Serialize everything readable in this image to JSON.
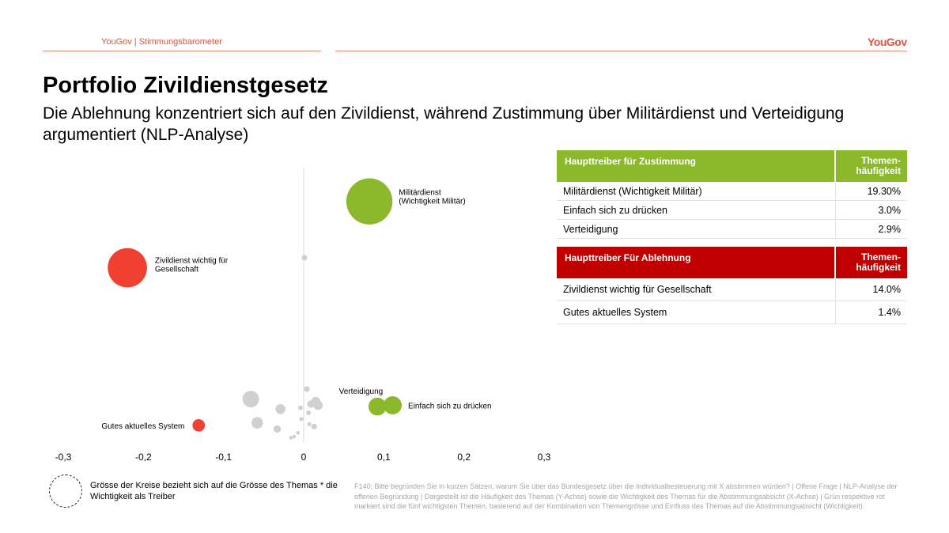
{
  "header": {
    "left_text": "YouGov | Stimmungsbarometer",
    "logo": "YouGov",
    "accent_color": "#e0533f"
  },
  "title": "Portfolio Zivildienstgesetz",
  "subtitle": "Die Ablehnung konzentriert sich auf den Zivildienst, während Zustimmung über Militärdienst und Verteidigung argumentiert (NLP-Analyse)",
  "chart_data": {
    "type": "scatter",
    "title": "",
    "xlabel": "",
    "ylabel": "",
    "xlim": [
      -0.3,
      0.3
    ],
    "x_tick_labels": [
      "-0,3",
      "-0,2",
      "-0,1",
      "0",
      "0,1",
      "0,2",
      "0,3"
    ],
    "x_ticks": [
      -0.3,
      -0.2,
      -0.1,
      0,
      0.1,
      0.2,
      0.3
    ],
    "grid": false,
    "colors": {
      "green": "#8cb92b",
      "red": "#f04030",
      "grey": "#d0d0d0"
    },
    "highlighted": [
      {
        "label": "Militärdienst\n(Wichtigkeit Militär)",
        "x": 0.082,
        "y": 19.3,
        "size": 19.3,
        "color": "green"
      },
      {
        "label": "Zivildienst wichtig für\nGesellschaft",
        "x": -0.22,
        "y": 14.0,
        "size": 14.0,
        "color": "red"
      },
      {
        "label": "Verteidigung",
        "x": 0.092,
        "y": 2.9,
        "size": 2.9,
        "color": "green"
      },
      {
        "label": "Einfach sich zu drücken",
        "x": 0.111,
        "y": 3.0,
        "size": 3.0,
        "color": "green"
      },
      {
        "label": "Gutes aktuelles System",
        "x": -0.131,
        "y": 1.4,
        "size": 1.4,
        "color": "red"
      }
    ],
    "other_points": [
      {
        "x": 0.001,
        "y": 14.8,
        "size": 0.3
      },
      {
        "x": 0.004,
        "y": 4.3,
        "size": 0.3
      },
      {
        "x": -0.066,
        "y": 3.5,
        "size": 2.5
      },
      {
        "x": -0.058,
        "y": 1.6,
        "size": 1.2
      },
      {
        "x": -0.029,
        "y": 2.7,
        "size": 0.9
      },
      {
        "x": -0.033,
        "y": 1.1,
        "size": 0.5
      },
      {
        "x": 0.015,
        "y": 3.3,
        "size": 0.8
      },
      {
        "x": 0.018,
        "y": 3.0,
        "size": 0.8
      },
      {
        "x": 0.009,
        "y": 3.1,
        "size": 0.5
      },
      {
        "x": 0.013,
        "y": 1.3,
        "size": 0.3
      },
      {
        "x": 0.006,
        "y": 2.4,
        "size": 0.2
      },
      {
        "x": -0.004,
        "y": 2.8,
        "size": 0.2
      },
      {
        "x": -0.003,
        "y": 1.9,
        "size": 0.15
      },
      {
        "x": 0.007,
        "y": 1.5,
        "size": 0.15
      },
      {
        "x": -0.012,
        "y": 0.5,
        "size": 0.12
      },
      {
        "x": -0.016,
        "y": 0.4,
        "size": 0.12
      },
      {
        "x": -0.007,
        "y": 0.8,
        "size": 0.12
      }
    ]
  },
  "table_agree": {
    "header_label": "Haupttreiber für Zustimmung",
    "header_value": "Themen-\nhäufigkeit",
    "rows": [
      {
        "label": "Militärdienst (Wichtigkeit Militär)",
        "value": "19.30%"
      },
      {
        "label": "Einfach sich zu drücken",
        "value": "3.0%"
      },
      {
        "label": "Verteidigung",
        "value": "2.9%"
      }
    ]
  },
  "table_reject": {
    "header_label": "Haupttreiber Für Ablehnung",
    "header_value": "Themen-\nhäufigkeit",
    "rows": [
      {
        "label": "Zivildienst wichtig für Gesellschaft",
        "value": "14.0%"
      },
      {
        "label": "Gutes aktuelles System",
        "value": "1.4%"
      }
    ]
  },
  "legend_note": "Grösse der Kreise bezieht sich auf die Grösse des Themas * die Wichtigkeit als Treiber",
  "footnote": "F140: Bitte begründen Sie in kurzen Sätzen, warum Sie über das Bundesgesetz über die Individualbesteuerung mit X abstimmen würden? | Offene Frage | NLP-Analyse der offenen Begründung | Dargestellt ist die Häufigkeit des Themas (Y-Achse) sowie die Wichtigkeit des Themas für die Abstimmungsabsicht (X-Achse) | Grün respektive rot markiert sind die fünf wichtigsten Themen, basierend auf der Kombination von Themengrösse und Einfluss des Themas auf die Abstimmungsabsicht (Wichtigkeit)."
}
